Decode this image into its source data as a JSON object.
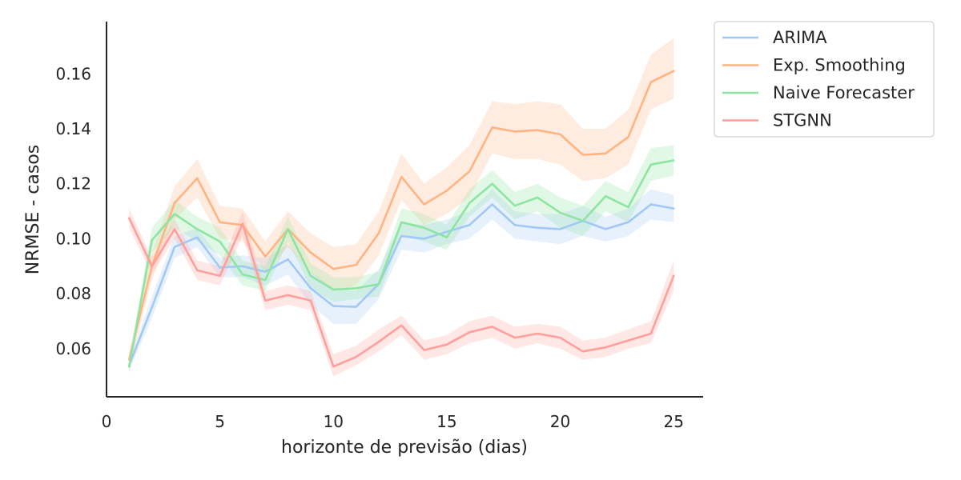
{
  "chart_data": {
    "type": "line",
    "xlabel": "horizonte de previsão (dias)",
    "ylabel": "NRMSE - casos",
    "xlim": [
      0,
      26.3
    ],
    "ylim": [
      0.0425,
      0.179
    ],
    "xticks": [
      0,
      5,
      10,
      15,
      20,
      25
    ],
    "yticks": [
      0.06,
      0.08,
      0.1,
      0.12,
      0.14,
      0.16
    ],
    "ytick_labels": [
      "0.06",
      "0.08",
      "0.10",
      "0.12",
      "0.14",
      "0.16"
    ],
    "grid": false,
    "legend_position": "outside-top-right",
    "x": [
      1,
      2,
      3,
      4,
      5,
      6,
      7,
      8,
      9,
      10,
      11,
      12,
      13,
      14,
      15,
      16,
      17,
      18,
      19,
      20,
      21,
      22,
      23,
      24,
      25
    ],
    "series": [
      {
        "name": "ARIMA",
        "color": "#a1c9f4",
        "values": [
          0.054,
          0.075,
          0.097,
          0.1005,
          0.0895,
          0.09,
          0.088,
          0.0925,
          0.082,
          0.0755,
          0.0752,
          0.0835,
          0.101,
          0.1,
          0.1025,
          0.105,
          0.1125,
          0.105,
          0.104,
          0.1035,
          0.1065,
          0.1035,
          0.106,
          0.1125,
          0.111
        ],
        "lower": [
          0.052,
          0.071,
          0.093,
          0.097,
          0.086,
          0.086,
          0.083,
          0.087,
          0.076,
          0.069,
          0.069,
          0.078,
          0.096,
          0.095,
          0.098,
          0.1,
          0.107,
          0.1,
          0.099,
          0.098,
          0.101,
          0.099,
          0.101,
          0.107,
          0.106
        ],
        "upper": [
          0.056,
          0.079,
          0.101,
          0.104,
          0.093,
          0.094,
          0.093,
          0.098,
          0.088,
          0.082,
          0.081,
          0.089,
          0.106,
          0.105,
          0.107,
          0.11,
          0.118,
          0.11,
          0.109,
          0.109,
          0.112,
          0.108,
          0.111,
          0.118,
          0.116
        ]
      },
      {
        "name": "Exp. Smoothing",
        "color": "#ffb482",
        "values": [
          0.056,
          0.09,
          0.113,
          0.122,
          0.106,
          0.105,
          0.0935,
          0.1035,
          0.095,
          0.089,
          0.0905,
          0.102,
          0.1225,
          0.1125,
          0.1175,
          0.1245,
          0.1405,
          0.139,
          0.1395,
          0.138,
          0.1305,
          0.131,
          0.137,
          0.157,
          0.161
        ],
        "lower": [
          0.053,
          0.085,
          0.107,
          0.115,
          0.1,
          0.099,
          0.088,
          0.097,
          0.088,
          0.081,
          0.083,
          0.094,
          0.114,
          0.105,
          0.109,
          0.115,
          0.131,
          0.129,
          0.129,
          0.127,
          0.121,
          0.122,
          0.127,
          0.147,
          0.151
        ],
        "upper": [
          0.059,
          0.095,
          0.119,
          0.129,
          0.112,
          0.111,
          0.099,
          0.11,
          0.102,
          0.097,
          0.098,
          0.11,
          0.131,
          0.12,
          0.126,
          0.134,
          0.15,
          0.149,
          0.15,
          0.149,
          0.14,
          0.14,
          0.147,
          0.167,
          0.173
        ]
      },
      {
        "name": "Naive Forecaster",
        "color": "#8de5a1",
        "values": [
          0.0535,
          0.0995,
          0.109,
          0.1035,
          0.099,
          0.087,
          0.085,
          0.1035,
          0.0865,
          0.0815,
          0.082,
          0.0835,
          0.106,
          0.104,
          0.1005,
          0.113,
          0.12,
          0.112,
          0.115,
          0.1095,
          0.1065,
          0.1155,
          0.1115,
          0.127,
          0.1285
        ],
        "lower": [
          0.051,
          0.095,
          0.104,
          0.099,
          0.094,
          0.083,
          0.081,
          0.099,
          0.082,
          0.077,
          0.078,
          0.079,
          0.101,
          0.099,
          0.096,
          0.108,
          0.115,
          0.107,
          0.11,
          0.104,
          0.101,
          0.11,
          0.106,
          0.121,
          0.123
        ],
        "upper": [
          0.056,
          0.104,
          0.114,
          0.108,
          0.104,
          0.092,
          0.09,
          0.108,
          0.091,
          0.086,
          0.086,
          0.088,
          0.111,
          0.109,
          0.105,
          0.118,
          0.125,
          0.117,
          0.12,
          0.115,
          0.112,
          0.121,
          0.117,
          0.133,
          0.134
        ]
      },
      {
        "name": "STGNN",
        "color": "#ff9f9b",
        "values": [
          0.1075,
          0.09,
          0.1035,
          0.0885,
          0.0865,
          0.1055,
          0.0775,
          0.0795,
          0.0775,
          0.0535,
          0.057,
          0.0625,
          0.0685,
          0.0595,
          0.0615,
          0.066,
          0.068,
          0.064,
          0.0655,
          0.064,
          0.059,
          0.0605,
          0.063,
          0.0655,
          0.0865
        ],
        "lower": [
          0.104,
          0.087,
          0.1,
          0.085,
          0.083,
          0.101,
          0.074,
          0.076,
          0.074,
          0.05,
          0.054,
          0.059,
          0.065,
          0.056,
          0.058,
          0.062,
          0.064,
          0.06,
          0.062,
          0.06,
          0.056,
          0.057,
          0.06,
          0.062,
          0.081
        ],
        "upper": [
          0.111,
          0.093,
          0.107,
          0.092,
          0.09,
          0.11,
          0.081,
          0.083,
          0.081,
          0.058,
          0.061,
          0.067,
          0.072,
          0.063,
          0.065,
          0.07,
          0.072,
          0.068,
          0.069,
          0.068,
          0.063,
          0.064,
          0.067,
          0.07,
          0.092
        ]
      }
    ]
  }
}
